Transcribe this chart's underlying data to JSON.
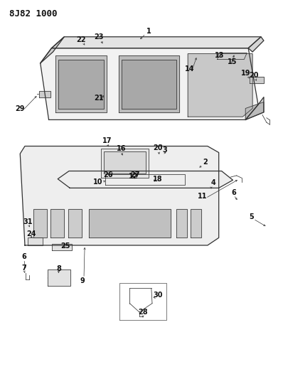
{
  "title": "8J82 1000",
  "bg_color": "#ffffff",
  "line_color": "#333333",
  "label_color": "#111111",
  "title_fontsize": 9,
  "label_fontsize": 7,
  "figsize": [
    3.98,
    5.33
  ],
  "dpi": 100
}
